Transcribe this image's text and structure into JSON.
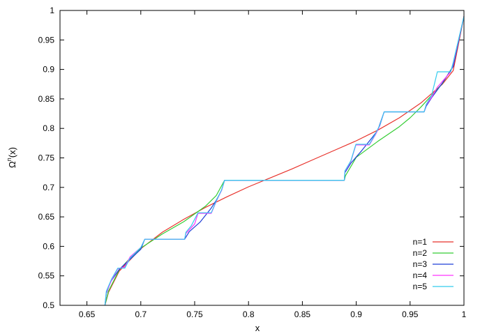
{
  "chart_data": {
    "type": "line",
    "xlabel": "x",
    "ylabel": "Ω",
    "ylabel_superscript": "n",
    "ylabel_suffix": "(x)",
    "xlim": [
      0.625,
      1.0
    ],
    "ylim": [
      0.5,
      1.0
    ],
    "x_ticks": [
      "0.65",
      "0.7",
      "0.75",
      "0.8",
      "0.85",
      "0.9",
      "0.95",
      "1"
    ],
    "x_tick_values": [
      0.65,
      0.7,
      0.75,
      0.8,
      0.85,
      0.9,
      0.95,
      1.0
    ],
    "y_ticks": [
      "0.5",
      "0.55",
      "0.6",
      "0.65",
      "0.7",
      "0.75",
      "0.8",
      "0.85",
      "0.9",
      "0.95",
      "1"
    ],
    "y_tick_values": [
      0.5,
      0.55,
      0.6,
      0.65,
      0.7,
      0.75,
      0.8,
      0.85,
      0.9,
      0.95,
      1.0
    ],
    "grid": false,
    "legend_position": "bottom-right",
    "series": [
      {
        "name": "n=1",
        "color": "#e8322b",
        "points": [
          [
            0.6667,
            0.5
          ],
          [
            0.67,
            0.522
          ],
          [
            0.68,
            0.558
          ],
          [
            0.7,
            0.596
          ],
          [
            0.72,
            0.624
          ],
          [
            0.74,
            0.646
          ],
          [
            0.76,
            0.666
          ],
          [
            0.78,
            0.684
          ],
          [
            0.8,
            0.701
          ],
          [
            0.82,
            0.716
          ],
          [
            0.84,
            0.731
          ],
          [
            0.86,
            0.747
          ],
          [
            0.88,
            0.763
          ],
          [
            0.9,
            0.779
          ],
          [
            0.92,
            0.797
          ],
          [
            0.94,
            0.818
          ],
          [
            0.96,
            0.843
          ],
          [
            0.98,
            0.875
          ],
          [
            0.99,
            0.898
          ],
          [
            1.0,
            0.99
          ]
        ]
      },
      {
        "name": "n=2",
        "color": "#33cc33",
        "points": [
          [
            0.6667,
            0.5
          ],
          [
            0.67,
            0.524
          ],
          [
            0.68,
            0.56
          ],
          [
            0.69,
            0.58
          ],
          [
            0.7,
            0.597
          ],
          [
            0.72,
            0.621
          ],
          [
            0.74,
            0.642
          ],
          [
            0.76,
            0.668
          ],
          [
            0.77,
            0.686
          ],
          [
            0.7778,
            0.712
          ],
          [
            0.8889,
            0.712
          ],
          [
            0.89,
            0.72
          ],
          [
            0.9,
            0.751
          ],
          [
            0.92,
            0.778
          ],
          [
            0.94,
            0.803
          ],
          [
            0.95,
            0.818
          ],
          [
            0.96,
            0.836
          ],
          [
            0.98,
            0.876
          ],
          [
            0.99,
            0.906
          ],
          [
            1.0,
            0.99
          ]
        ]
      },
      {
        "name": "n=3",
        "color": "#1f3dd6",
        "points": [
          [
            0.6667,
            0.5
          ],
          [
            0.668,
            0.52
          ],
          [
            0.672,
            0.54
          ],
          [
            0.68,
            0.561
          ],
          [
            0.69,
            0.578
          ],
          [
            0.7,
            0.595
          ],
          [
            0.7037,
            0.612
          ],
          [
            0.7407,
            0.612
          ],
          [
            0.745,
            0.625
          ],
          [
            0.755,
            0.641
          ],
          [
            0.765,
            0.664
          ],
          [
            0.77,
            0.678
          ],
          [
            0.775,
            0.695
          ],
          [
            0.7778,
            0.712
          ],
          [
            0.8889,
            0.712
          ],
          [
            0.8895,
            0.725
          ],
          [
            0.895,
            0.741
          ],
          [
            0.905,
            0.762
          ],
          [
            0.915,
            0.785
          ],
          [
            0.92,
            0.797
          ],
          [
            0.9259,
            0.828
          ],
          [
            0.963,
            0.828
          ],
          [
            0.965,
            0.838
          ],
          [
            0.97,
            0.852
          ],
          [
            0.98,
            0.877
          ],
          [
            0.99,
            0.905
          ],
          [
            1.0,
            0.99
          ]
        ]
      },
      {
        "name": "n=4",
        "color": "#ff33ff",
        "points": [
          [
            0.6667,
            0.5
          ],
          [
            0.668,
            0.522
          ],
          [
            0.673,
            0.543
          ],
          [
            0.6786,
            0.562
          ],
          [
            0.6852,
            0.565
          ],
          [
            0.69,
            0.582
          ],
          [
            0.7,
            0.598
          ],
          [
            0.7037,
            0.612
          ],
          [
            0.7407,
            0.612
          ],
          [
            0.7419,
            0.622
          ],
          [
            0.75,
            0.638
          ],
          [
            0.7531,
            0.656
          ],
          [
            0.7654,
            0.656
          ],
          [
            0.77,
            0.676
          ],
          [
            0.775,
            0.695
          ],
          [
            0.7778,
            0.712
          ],
          [
            0.8889,
            0.712
          ],
          [
            0.8895,
            0.727
          ],
          [
            0.895,
            0.744
          ],
          [
            0.8997,
            0.772
          ],
          [
            0.9121,
            0.772
          ],
          [
            0.918,
            0.79
          ],
          [
            0.922,
            0.805
          ],
          [
            0.9259,
            0.828
          ],
          [
            0.963,
            0.828
          ],
          [
            0.965,
            0.84
          ],
          [
            0.97,
            0.853
          ],
          [
            0.9753,
            0.87
          ],
          [
            0.9877,
            0.896
          ],
          [
            0.99,
            0.91
          ],
          [
            1.0,
            0.99
          ]
        ]
      },
      {
        "name": "n=5",
        "color": "#33ccee",
        "points": [
          [
            0.6667,
            0.5
          ],
          [
            0.668,
            0.524
          ],
          [
            0.673,
            0.545
          ],
          [
            0.6786,
            0.563
          ],
          [
            0.6852,
            0.563
          ],
          [
            0.69,
            0.58
          ],
          [
            0.7,
            0.598
          ],
          [
            0.7037,
            0.612
          ],
          [
            0.7407,
            0.612
          ],
          [
            0.7419,
            0.624
          ],
          [
            0.7469,
            0.635
          ],
          [
            0.7531,
            0.657
          ],
          [
            0.7654,
            0.657
          ],
          [
            0.77,
            0.677
          ],
          [
            0.775,
            0.696
          ],
          [
            0.7778,
            0.712
          ],
          [
            0.8889,
            0.712
          ],
          [
            0.8895,
            0.728
          ],
          [
            0.895,
            0.745
          ],
          [
            0.8997,
            0.773
          ],
          [
            0.9121,
            0.773
          ],
          [
            0.917,
            0.788
          ],
          [
            0.922,
            0.806
          ],
          [
            0.9259,
            0.828
          ],
          [
            0.963,
            0.828
          ],
          [
            0.965,
            0.841
          ],
          [
            0.97,
            0.856
          ],
          [
            0.9753,
            0.896
          ],
          [
            0.9877,
            0.896
          ],
          [
            0.99,
            0.912
          ],
          [
            1.0,
            0.99
          ]
        ]
      }
    ]
  }
}
